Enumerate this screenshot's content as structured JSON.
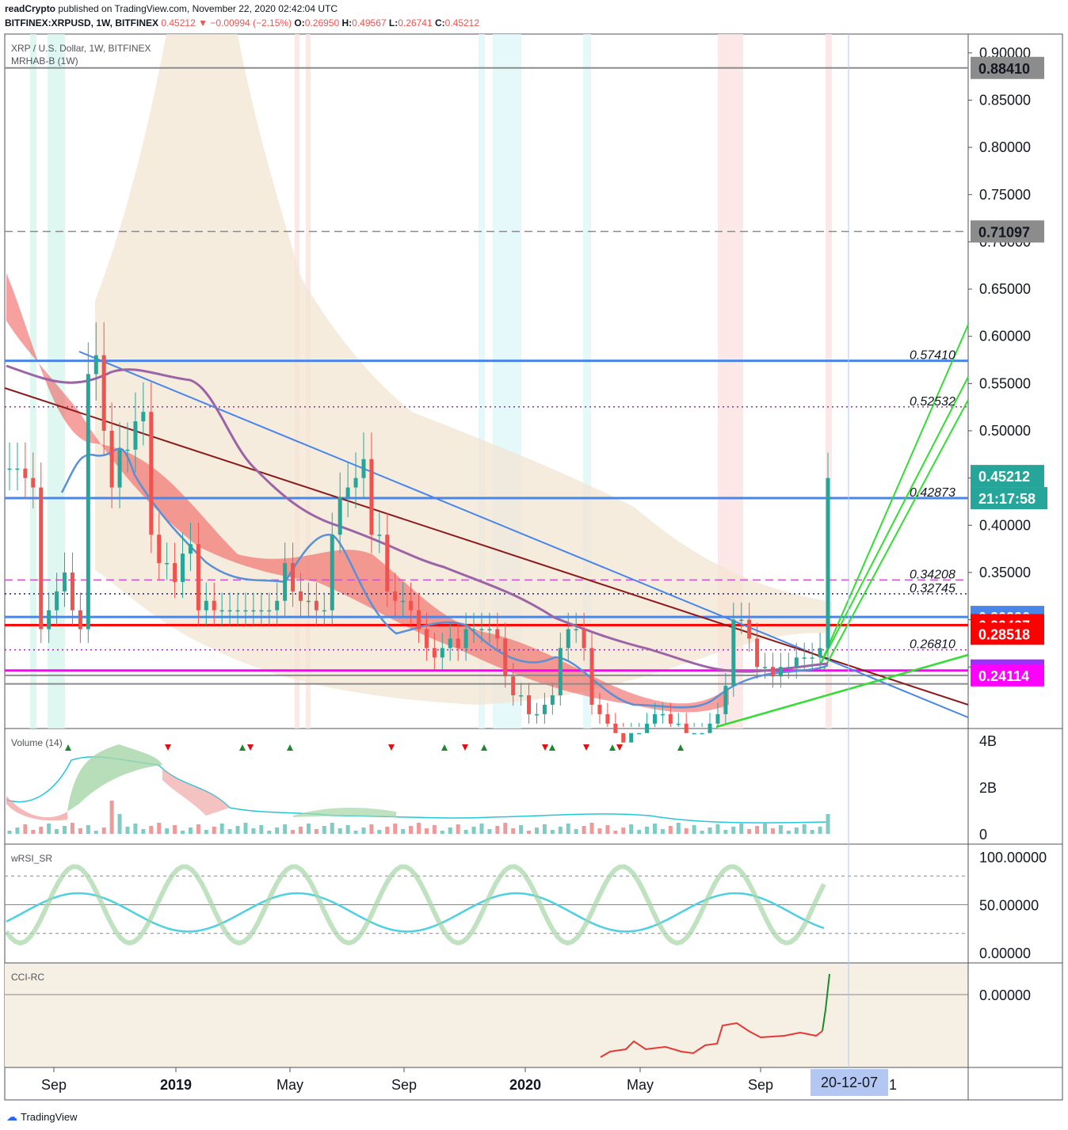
{
  "header": {
    "line1_author": "readCrypto",
    "line1_rest": " published on TradingView.com, November 22, 2020 02:42:04 UTC",
    "line2_symbol": "BITFINEX:XRPUSD, 1W, BITFINEX",
    "line2_last": "0.45212",
    "line2_change": "−0.00994 (−2.15%)",
    "ohlc": {
      "o_label": "O:",
      "o": "0.26950",
      "h_label": "H:",
      "h": "0.49567",
      "l_label": "L:",
      "l": "0.26741",
      "c_label": "C:",
      "c": "0.45212"
    }
  },
  "panes": {
    "main_title": "XRP / U.S. Dollar, 1W, BITFINEX",
    "main_indicator": "MRHAB-B (1W)",
    "volume_label": "Volume (14)",
    "rsi_label": "wRSI_SR",
    "cci_label": "CCI-RC"
  },
  "footer": {
    "brand": "TradingView"
  },
  "colors": {
    "up": "#26a69a",
    "down": "#ef5350",
    "blue_line": "#4a86e8",
    "brown_line": "#8b1a1a",
    "green_line": "#33dd33",
    "purple_ma": "#9c64a6",
    "magenta": "#ff00ff",
    "red_hline": "#ff0000"
  },
  "chart_data": [
    {
      "type": "candlestick",
      "title": "XRP / U.S. Dollar, 1W, BITFINEX",
      "ylim": [
        0.225,
        0.918
      ],
      "y_ticks": [
        "0.90000",
        "0.85000",
        "0.80000",
        "0.75000",
        "0.70000",
        "0.65000",
        "0.60000",
        "0.55000",
        "0.50000",
        "0.45000",
        "0.40000",
        "0.35000",
        "0.30000",
        "0.25000"
      ],
      "x_tick_labels": [
        "Sep",
        "2019",
        "May",
        "Sep",
        "2020",
        "May",
        "Sep",
        "20-12-07",
        "1"
      ],
      "price_tags": [
        {
          "label": "0.88410",
          "value": 0.8841,
          "color": "#8c8c8c"
        },
        {
          "label": "0.71097",
          "value": 0.71097,
          "color": "#8c8c8c"
        },
        {
          "label": "0.45212",
          "value": 0.45212,
          "color": "#26a69a"
        },
        {
          "label": "21:17:58",
          "value": 0.4287,
          "color": "#26a69a"
        },
        {
          "label": "0.30296",
          "value": 0.30296,
          "color": "#4a86e8"
        },
        {
          "label": "0.29427",
          "value": 0.29427,
          "color": "#ff0000"
        },
        {
          "label": "0.28518",
          "value": 0.28518,
          "color": "#ff0000"
        },
        {
          "label": "0.24623",
          "value": 0.24623,
          "color": "#9b30ff"
        },
        {
          "label": "0.24114",
          "value": 0.24114,
          "color": "#ff00ff"
        }
      ],
      "level_labels": [
        {
          "label": "0.57410",
          "value": 0.5741
        },
        {
          "label": "0.52532",
          "value": 0.52532
        },
        {
          "label": "0.42873",
          "value": 0.42873
        },
        {
          "label": "0.34208",
          "value": 0.34208
        },
        {
          "label": "0.32745",
          "value": 0.32745
        },
        {
          "label": "0.26810",
          "value": 0.2681
        }
      ],
      "horizontal_levels": [
        {
          "value": 0.8841,
          "style": "solid",
          "color": "#8c8c8c"
        },
        {
          "value": 0.71097,
          "style": "dashed",
          "color": "#8c8c8c"
        },
        {
          "value": 0.5741,
          "style": "solid",
          "color": "#4a86e8"
        },
        {
          "value": 0.52532,
          "style": "dotted",
          "color": "#9c27b0"
        },
        {
          "value": 0.42873,
          "style": "solid",
          "color": "#4a86e8"
        },
        {
          "value": 0.34208,
          "style": "dashed",
          "color": "#d050d0"
        },
        {
          "value": 0.32745,
          "style": "dotted",
          "color": "#1a237e"
        },
        {
          "value": 0.30296,
          "style": "solid",
          "color": "#4a86e8"
        },
        {
          "value": 0.29427,
          "style": "solid",
          "color": "#ff0000"
        },
        {
          "value": 0.2681,
          "style": "dotted",
          "color": "#9c27b0"
        },
        {
          "value": 0.24623,
          "style": "solid",
          "color": "#ff00ff"
        },
        {
          "value": 0.2411,
          "style": "solid",
          "color": "#8c8c8c"
        },
        {
          "value": 0.2321,
          "style": "solid",
          "color": "#8c8c8c"
        }
      ],
      "candles_close": [
        0.46,
        0.46,
        0.45,
        0.44,
        0.29,
        0.31,
        0.33,
        0.35,
        0.31,
        0.29,
        0.56,
        0.58,
        0.5,
        0.44,
        0.48,
        0.48,
        0.51,
        0.52,
        0.39,
        0.36,
        0.36,
        0.34,
        0.37,
        0.38,
        0.31,
        0.32,
        0.31,
        0.31,
        0.31,
        0.31,
        0.31,
        0.31,
        0.31,
        0.31,
        0.32,
        0.36,
        0.33,
        0.32,
        0.32,
        0.31,
        0.31,
        0.39,
        0.43,
        0.44,
        0.45,
        0.47,
        0.39,
        0.39,
        0.33,
        0.32,
        0.32,
        0.31,
        0.29,
        0.27,
        0.26,
        0.27,
        0.28,
        0.27,
        0.29,
        0.29,
        0.29,
        0.29,
        0.28,
        0.24,
        0.22,
        0.22,
        0.2,
        0.2,
        0.21,
        0.22,
        0.27,
        0.29,
        0.29,
        0.27,
        0.21,
        0.2,
        0.19,
        0.18,
        0.17,
        0.18,
        0.18,
        0.19,
        0.2,
        0.2,
        0.19,
        0.19,
        0.18,
        0.18,
        0.18,
        0.19,
        0.2,
        0.23,
        0.3,
        0.3,
        0.28,
        0.25,
        0.25,
        0.24,
        0.25,
        0.25,
        0.26,
        0.26,
        0.26,
        0.27,
        0.45
      ]
    },
    {
      "type": "bar",
      "title": "Volume (14)",
      "y_ticks": [
        "4B",
        "2B",
        "0"
      ]
    },
    {
      "type": "line",
      "title": "wRSI_SR",
      "y_ticks": [
        "100.00000",
        "50.00000",
        "0.00000"
      ],
      "ylim": [
        0,
        100
      ]
    },
    {
      "type": "line",
      "title": "CCI-RC",
      "y_ticks": [
        "0.00000"
      ]
    }
  ]
}
